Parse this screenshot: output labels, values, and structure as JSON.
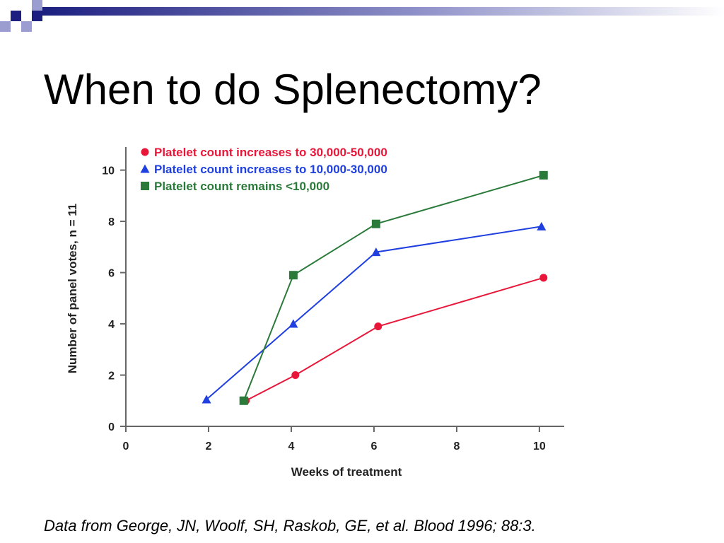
{
  "slide": {
    "title": "When to do Splenectomy?",
    "citation": "Data from George, JN, Woolf, SH, Raskob, GE, et al. Blood 1996; 88:3."
  },
  "chart_data": {
    "type": "line",
    "title": "",
    "xlabel": "Weeks of treatment",
    "ylabel": "Number of panel votes, n = 11",
    "xlim": [
      0,
      10.6
    ],
    "ylim": [
      0,
      10.9
    ],
    "xticks": [
      0,
      2,
      4,
      6,
      8,
      10
    ],
    "yticks": [
      0,
      2,
      4,
      6,
      8,
      10
    ],
    "grid": false,
    "legend_position": "top-left",
    "series": [
      {
        "name": "Platelet count increases to 30,000-50,000",
        "color": "#e8173a",
        "marker": "circle",
        "x": [
          2.9,
          4.1,
          6.1,
          10.1
        ],
        "y": [
          1.0,
          2.0,
          3.9,
          5.8
        ]
      },
      {
        "name": "Platelet count increases to 10,000-30,000",
        "color": "#1f3fe0",
        "marker": "triangle",
        "x": [
          1.95,
          4.05,
          6.05,
          10.05
        ],
        "y": [
          1.05,
          4.0,
          6.8,
          7.8
        ]
      },
      {
        "name": "Platelet count remains <10,000",
        "color": "#2a7a3a",
        "marker": "square",
        "x": [
          2.85,
          4.05,
          6.05,
          10.1
        ],
        "y": [
          1.0,
          5.9,
          7.9,
          9.8
        ]
      }
    ]
  },
  "decor": {
    "accent_dark": "#1d1f80",
    "accent_light": "#9b9ccf"
  }
}
